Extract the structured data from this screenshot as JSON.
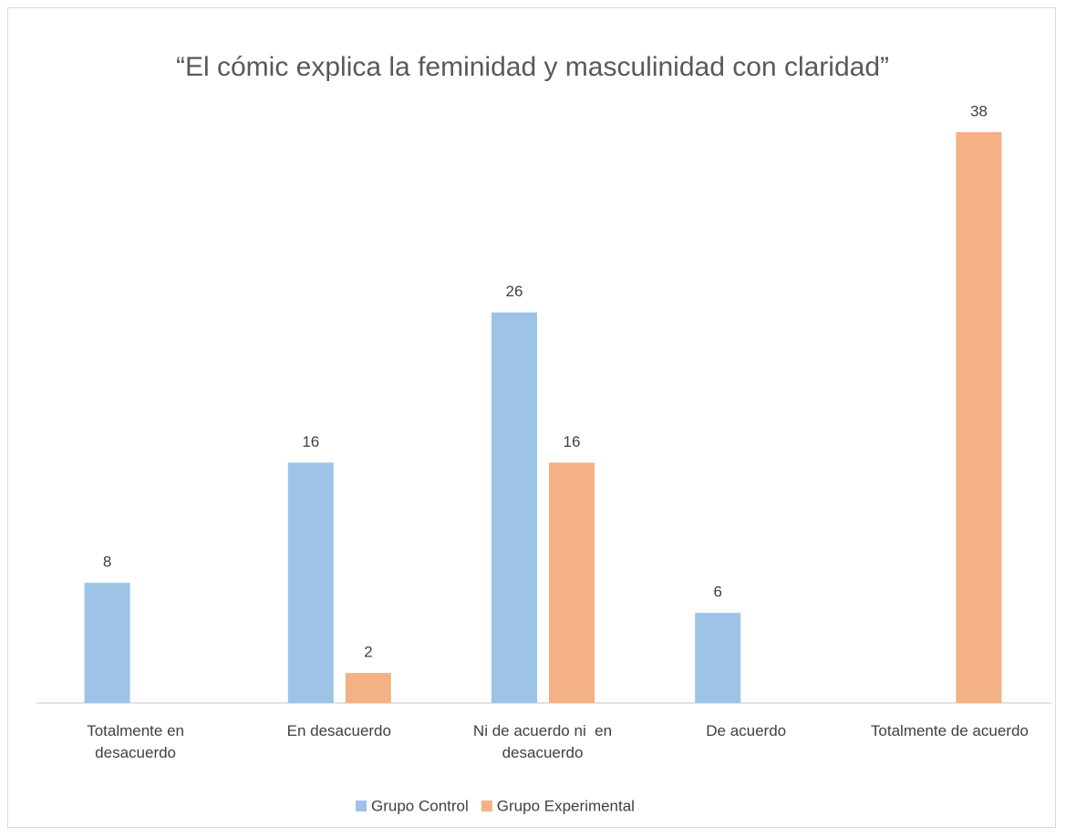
{
  "chart_data": {
    "type": "bar",
    "title": "“El cómic explica la feminidad y masculinidad con claridad”",
    "categories": [
      "Totalmente en desacuerdo",
      "En desacuerdo",
      "Ni de acuerdo ni  en desacuerdo",
      "De acuerdo",
      "Totalmente de acuerdo"
    ],
    "series": [
      {
        "name": "Grupo Control",
        "color": "#9dc3e6",
        "values": [
          8,
          16,
          26,
          6,
          null
        ]
      },
      {
        "name": "Grupo Experimental",
        "color": "#f4b183",
        "values": [
          null,
          2,
          16,
          null,
          38
        ]
      }
    ],
    "legend": "bottom"
  }
}
